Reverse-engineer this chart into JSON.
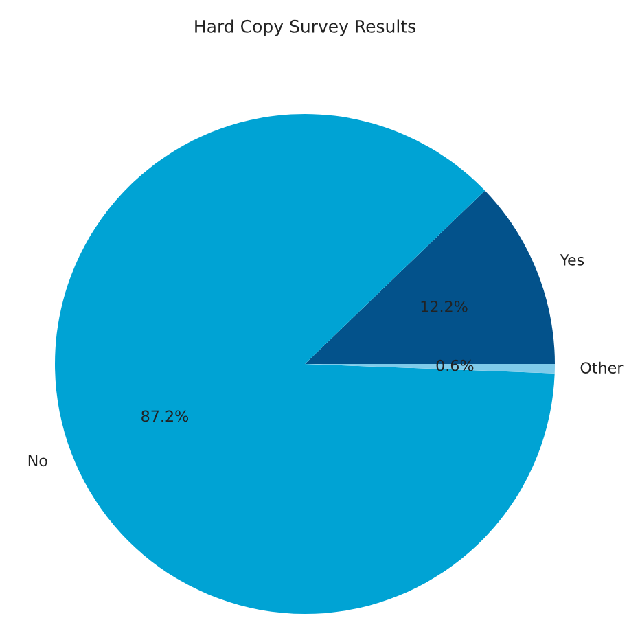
{
  "chart_data": {
    "type": "pie",
    "title": "Hard Copy Survey Results",
    "categories": [
      "Yes",
      "No",
      "Other"
    ],
    "values": [
      12.2,
      87.2,
      0.6
    ],
    "value_labels": [
      "12.2%",
      "87.2%",
      "0.6%"
    ],
    "colors": [
      "#03528b",
      "#00a3d4",
      "#7fcbea"
    ]
  }
}
